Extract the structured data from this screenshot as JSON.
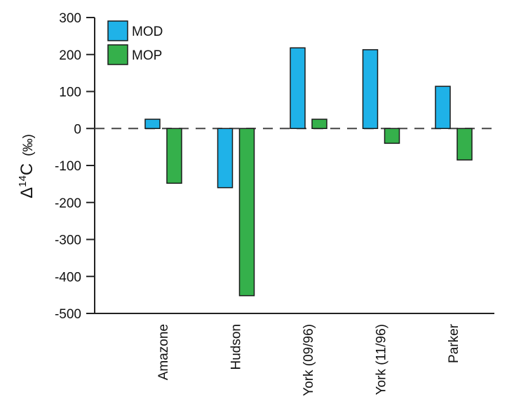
{
  "chart_data": {
    "type": "bar",
    "title": "",
    "xlabel": "",
    "ylabel": {
      "main": "Δ",
      "superscript": "14",
      "suffix": "C",
      "unit": "(‰)"
    },
    "ylim": [
      -500,
      300
    ],
    "yticks": [
      300,
      200,
      100,
      0,
      -100,
      -200,
      -300,
      -400,
      -500
    ],
    "categories": [
      "Amazone",
      "Hudson",
      "York (09/96)",
      "York (11/96)",
      "Parker"
    ],
    "series": [
      {
        "name": "MOD",
        "color": "#1fb2e8",
        "values": [
          25,
          -160,
          218,
          213,
          114
        ]
      },
      {
        "name": "MOP",
        "color": "#35b04b",
        "values": [
          -148,
          -452,
          25,
          -40,
          -85
        ]
      }
    ],
    "zero_line": "dashed",
    "grid": false,
    "legend": "top-left"
  }
}
